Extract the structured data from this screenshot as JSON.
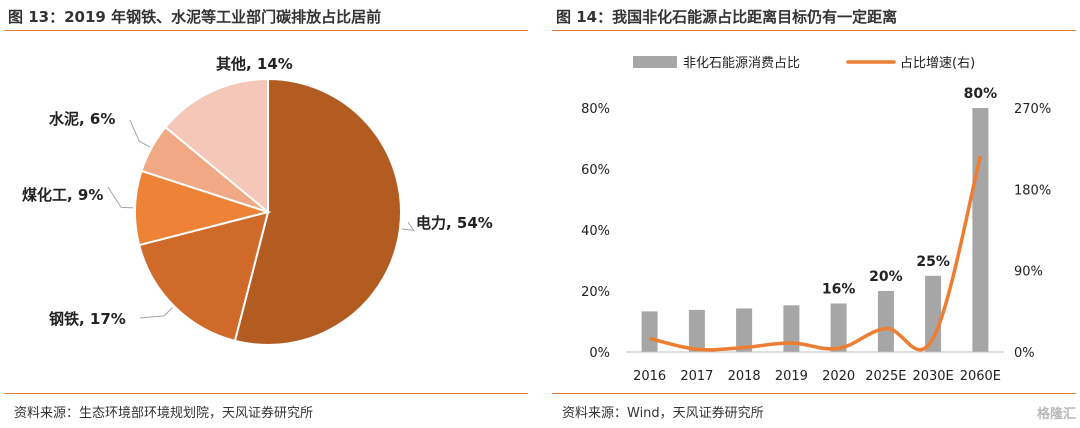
{
  "left": {
    "title": "图 13：2019 年钢铁、水泥等工业部门碳排放占比居前",
    "source": "资料来源：生态环境部环境规划院，天风证券研究所"
  },
  "right": {
    "title": "图 14：我国非化石能源占比距离目标仍有一定距离",
    "source": "资料来源：Wind，天风证券研究所"
  },
  "watermark": "格隆汇",
  "colors": {
    "accent_rule": "#e8833a",
    "bar": "#a6a6a6",
    "line": "#ed7d31",
    "pie": [
      "#b35c22",
      "#d06a2b",
      "#ee8236",
      "#f0a885",
      "#f5c7b8"
    ]
  },
  "chart_data": [
    {
      "type": "pie",
      "title": "",
      "slices": [
        {
          "label": "电力, 54%",
          "name": "电力",
          "value": 54
        },
        {
          "label": "钢铁, 17%",
          "name": "钢铁",
          "value": 17
        },
        {
          "label": "煤化工, 9%",
          "name": "煤化工",
          "value": 9
        },
        {
          "label": "水泥, 6%",
          "name": "水泥",
          "value": 6
        },
        {
          "label": "其他, 14%",
          "name": "其他",
          "value": 14
        }
      ],
      "start": "12 o'clock",
      "direction": "clockwise"
    },
    {
      "type": "bar",
      "categories": [
        "2016",
        "2017",
        "2018",
        "2019",
        "2020",
        "2025E",
        "2030E",
        "2060E"
      ],
      "legend_position": "top",
      "grid": false,
      "series": [
        {
          "name": "非化石能源消费占比",
          "type": "bar",
          "axis": "left",
          "values": [
            13.3,
            13.8,
            14.3,
            15.3,
            15.9,
            20,
            25,
            80
          ],
          "data_labels": [
            "",
            "",
            "",
            "",
            "16%",
            "20%",
            "25%",
            "80%"
          ]
        },
        {
          "name": "占比增速(右)",
          "type": "line",
          "axis": "right",
          "values": [
            15,
            3,
            5,
            10,
            4,
            26,
            15,
            217
          ]
        }
      ],
      "y_left": {
        "ticks": [
          "0%",
          "20%",
          "40%",
          "60%",
          "80%"
        ],
        "tick_values": [
          0,
          20,
          40,
          60,
          80
        ],
        "ylim": [
          0,
          80
        ]
      },
      "y_right": {
        "ticks": [
          "0%",
          "90%",
          "180%",
          "270%"
        ],
        "tick_values": [
          0,
          90,
          180,
          270
        ],
        "ylim": [
          0,
          270
        ]
      }
    }
  ]
}
